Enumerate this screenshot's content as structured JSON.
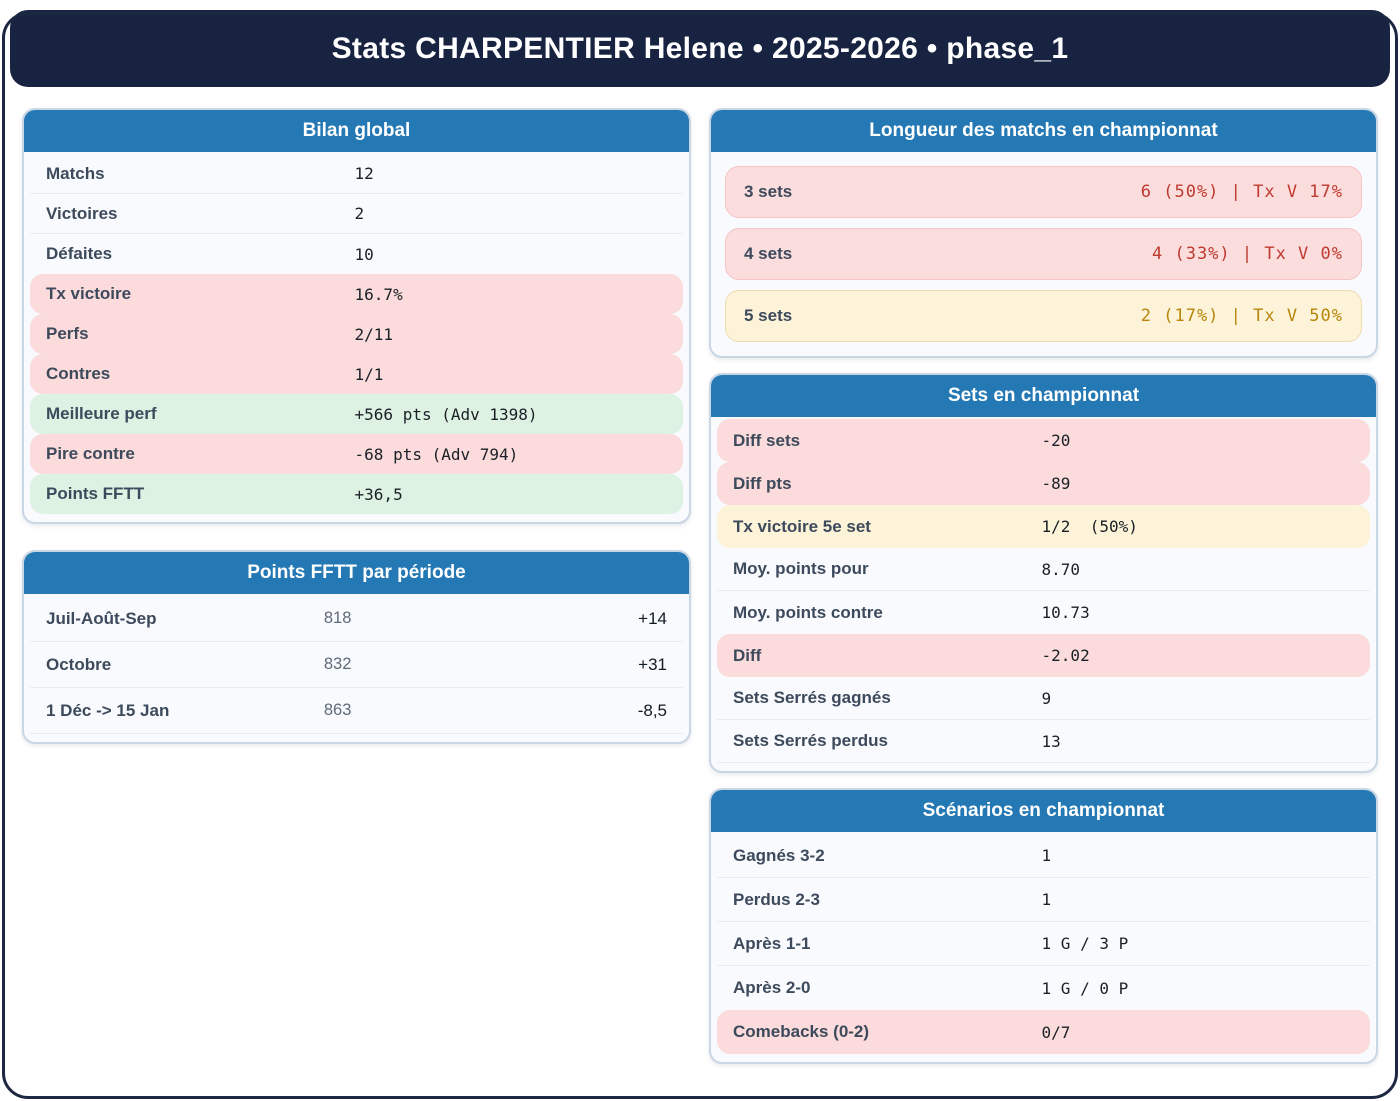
{
  "header": {
    "title": "Stats CHARPENTIER Helene • 2025-2026 • phase_1"
  },
  "colors": {
    "header_navy": "#172340",
    "accent_blue": "#2478b4",
    "negative_bg": "#fbdbdb",
    "positive_bg": "#def2e3",
    "warning_bg": "#fdf3d9",
    "negative_text": "#bf3a2f",
    "warning_text": "#b8860b"
  },
  "cards": {
    "bilan": {
      "title": "Bilan global",
      "rows": [
        {
          "label": "Matchs",
          "value": "12",
          "variant": "plain"
        },
        {
          "label": "Victoires",
          "value": "2",
          "variant": "plain"
        },
        {
          "label": "Défaites",
          "value": "10",
          "variant": "plain"
        },
        {
          "label": "Tx victoire",
          "value": "16.7%",
          "variant": "pink"
        },
        {
          "label": "Perfs",
          "value": "2/11",
          "variant": "pink"
        },
        {
          "label": "Contres",
          "value": "1/1",
          "variant": "pink"
        },
        {
          "label": "Meilleure perf",
          "value": "+566 pts (Adv 1398)",
          "variant": "green"
        },
        {
          "label": "Pire contre",
          "value": "-68 pts (Adv 794)",
          "variant": "pink"
        },
        {
          "label": "Points FFTT",
          "value": "+36,5",
          "variant": "green"
        }
      ]
    },
    "periodes": {
      "title": "Points FFTT par période",
      "rows": [
        {
          "label": "Juil-Août-Sep",
          "points": "818",
          "delta": "+14"
        },
        {
          "label": "Octobre",
          "points": "832",
          "delta": "+31"
        },
        {
          "label": "1 Déc -> 15 Jan",
          "points": "863",
          "delta": "-8,5"
        }
      ]
    },
    "longueur": {
      "title": "Longueur des matchs en championnat",
      "rows": [
        {
          "label": "3 sets",
          "value": "6 (50%) | Tx V 17%",
          "variant": "red"
        },
        {
          "label": "4 sets",
          "value": "4 (33%) | Tx V 0%",
          "variant": "red"
        },
        {
          "label": "5 sets",
          "value": "2 (17%) | Tx V 50%",
          "variant": "amber"
        }
      ]
    },
    "sets": {
      "title": "Sets en championnat",
      "rows": [
        {
          "label": "Diff sets",
          "value": "-20",
          "variant": "pink"
        },
        {
          "label": "Diff pts",
          "value": "-89",
          "variant": "pink"
        },
        {
          "label": "Tx victoire 5e set",
          "value": "1/2  (50%)",
          "variant": "yellow"
        },
        {
          "label": "Moy. points pour",
          "value": "8.70",
          "variant": "plain"
        },
        {
          "label": "Moy. points contre",
          "value": "10.73",
          "variant": "plain"
        },
        {
          "label": "Diff",
          "value": "-2.02",
          "variant": "pink"
        },
        {
          "label": "Sets Serrés gagnés",
          "value": "9",
          "variant": "plain"
        },
        {
          "label": "Sets Serrés perdus",
          "value": "13",
          "variant": "plain"
        }
      ]
    },
    "scenarios": {
      "title": "Scénarios en championnat",
      "rows": [
        {
          "label": "Gagnés 3-2",
          "value": "1",
          "variant": "plain"
        },
        {
          "label": "Perdus 2-3",
          "value": "1",
          "variant": "plain"
        },
        {
          "label": "Après 1-1",
          "value": "1 G / 3 P",
          "variant": "plain"
        },
        {
          "label": "Après 2-0",
          "value": "1 G / 0 P",
          "variant": "plain"
        },
        {
          "label": "Comebacks (0-2)",
          "value": "0/7",
          "variant": "pink"
        }
      ]
    }
  }
}
